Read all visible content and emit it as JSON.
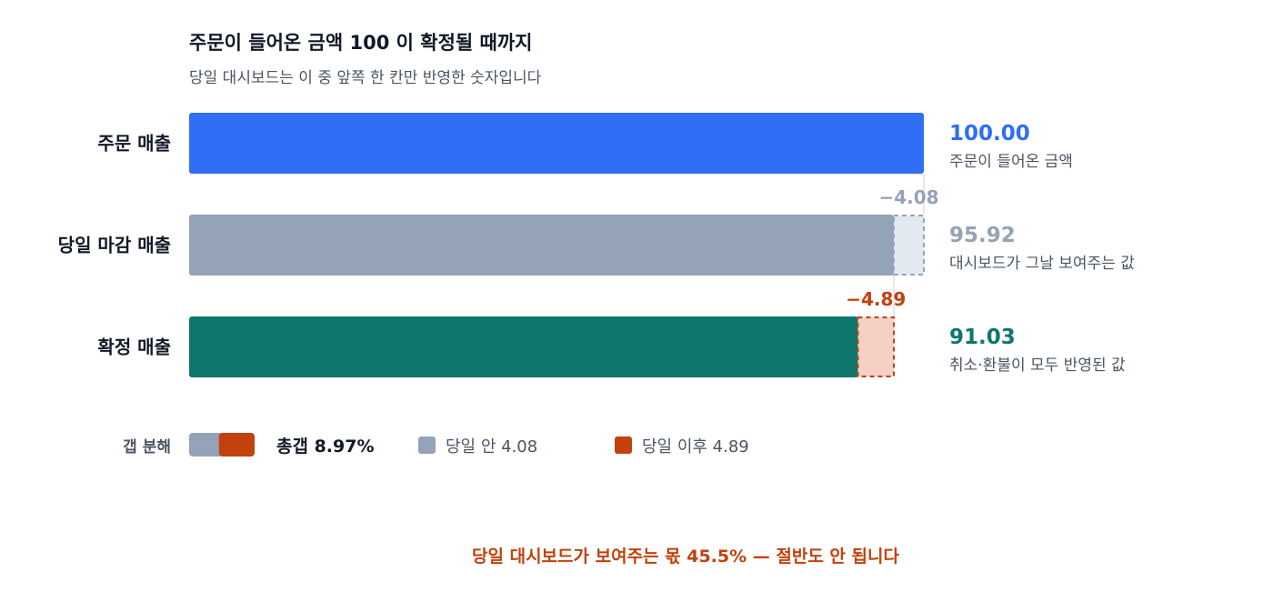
{
  "chart_data": {
    "type": "bar",
    "orientation": "horizontal",
    "title": "주문이 들어온 금액 100 이 확정될 때까지",
    "subtitle": "당일 대시보드는 이 중 앞쪽 한 칸만 반영한 숫자입니다",
    "xlim": [
      0,
      100
    ],
    "grid": false,
    "categories": [
      "주문 매출",
      "당일 마감 매출",
      "확정 매출"
    ],
    "values": [
      100.0,
      95.92,
      91.03
    ],
    "value_labels": [
      "100.00",
      "95.92",
      "91.03"
    ],
    "descriptions": [
      "주문이 들어온 금액",
      "대시보드가 그날 보여주는 값",
      "취소·환불이 모두 반영된 값"
    ],
    "bar_colors": [
      "#2f6ef5",
      "#94a3b8",
      "#0f766e"
    ],
    "gaps": [
      {
        "row": 1,
        "value": 4.08,
        "label": "−4.08",
        "color": "#94a3b8",
        "fill": "#e2e8f0"
      },
      {
        "row": 2,
        "value": 4.89,
        "label": "−4.89",
        "color": "#c2410c",
        "fill": "#f5d0c3"
      }
    ],
    "breakdown": {
      "label": "갭 분해",
      "total_label": "총갭 8.97%",
      "total": 8.97,
      "segments": [
        {
          "name": "당일 안 4.08",
          "value": 4.08,
          "color": "#94a3b8"
        },
        {
          "name": "당일 이후 4.89",
          "value": 4.89,
          "color": "#c2410c"
        }
      ]
    },
    "footnote": "당일 대시보드가 보여주는 몫 45.5% — 절반도 안 됩니다",
    "footnote_color": "#c2410c"
  }
}
